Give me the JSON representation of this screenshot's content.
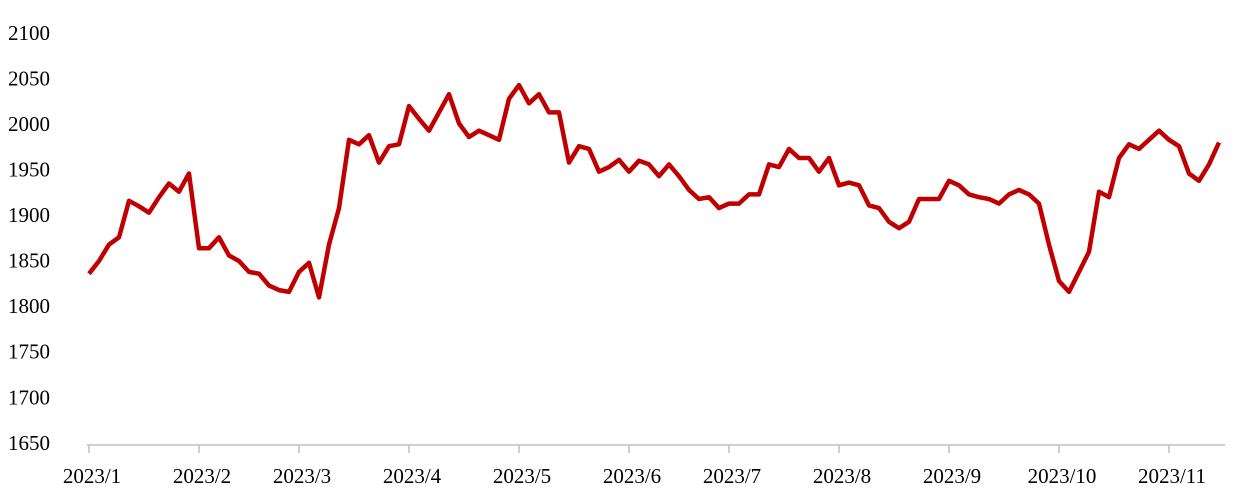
{
  "chart_data": {
    "type": "line",
    "color": "#c00000",
    "categories": [
      "2023/1",
      null,
      null,
      null,
      null,
      null,
      null,
      null,
      null,
      null,
      null,
      "2023/2",
      null,
      null,
      null,
      null,
      null,
      null,
      null,
      null,
      null,
      "2023/3",
      null,
      null,
      null,
      null,
      null,
      null,
      null,
      null,
      null,
      null,
      "2023/4",
      null,
      null,
      null,
      null,
      null,
      null,
      null,
      null,
      null,
      null,
      "2023/5",
      null,
      null,
      null,
      null,
      null,
      null,
      null,
      null,
      null,
      null,
      "2023/6",
      null,
      null,
      null,
      null,
      null,
      null,
      null,
      null,
      null,
      "2023/7",
      null,
      null,
      null,
      null,
      null,
      null,
      null,
      null,
      null,
      null,
      "2023/8",
      null,
      null,
      null,
      null,
      null,
      null,
      null,
      null,
      null,
      null,
      "2023/9",
      null,
      null,
      null,
      null,
      null,
      null,
      null,
      null,
      null,
      null,
      "2023/10",
      null,
      null,
      null,
      null,
      null,
      null,
      null,
      null,
      null,
      null,
      "2023/11",
      null,
      null,
      null,
      null,
      null
    ],
    "values": [
      1838,
      1852,
      1870,
      1878,
      1918,
      1912,
      1905,
      1922,
      1937,
      1928,
      1948,
      1866,
      1866,
      1878,
      1858,
      1852,
      1840,
      1838,
      1825,
      1820,
      1818,
      1840,
      1850,
      1812,
      1870,
      1910,
      1985,
      1980,
      1990,
      1960,
      1978,
      1980,
      2022,
      2008,
      1995,
      2015,
      2035,
      2003,
      1988,
      1995,
      1990,
      1985,
      2030,
      2045,
      2025,
      2035,
      2015,
      2015,
      1960,
      1978,
      1975,
      1950,
      1955,
      1963,
      1950,
      1962,
      1958,
      1945,
      1958,
      1945,
      1930,
      1920,
      1922,
      1910,
      1915,
      1915,
      1925,
      1925,
      1958,
      1955,
      1975,
      1965,
      1965,
      1950,
      1965,
      1935,
      1938,
      1935,
      1913,
      1910,
      1895,
      1888,
      1895,
      1920,
      1920,
      1920,
      1940,
      1935,
      1925,
      1922,
      1920,
      1915,
      1925,
      1930,
      1925,
      1915,
      1870,
      1830,
      1818,
      1840,
      1862,
      1928,
      1922,
      1965,
      1980,
      1975,
      1985,
      1995,
      1985,
      1978,
      1948,
      1940,
      1958,
      1982
    ],
    "ylim": [
      1650,
      2100
    ],
    "yticks": [
      1650,
      1700,
      1750,
      1800,
      1850,
      1900,
      1950,
      2000,
      2050,
      2100
    ],
    "grid": false
  }
}
